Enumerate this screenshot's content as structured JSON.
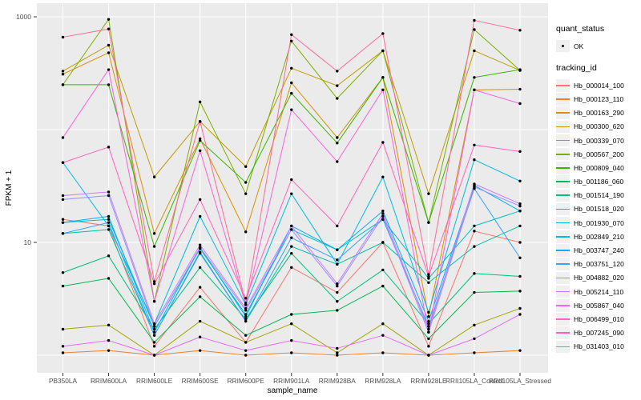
{
  "figure": {
    "y_axis": {
      "label": "FPKM + 1",
      "tick_labels": [
        "1000",
        "10"
      ],
      "tick_values": [
        1000,
        10
      ]
    },
    "x_axis": {
      "label": "sample_name"
    },
    "legend": {
      "quant_status_title": "quant_status",
      "quant_status_items": [
        {
          "label": "OK",
          "symbol": "point-icon"
        }
      ],
      "tracking_title": "tracking_id"
    },
    "colors": {
      "panel_bg": "#EBEBEB",
      "grid": "#FFFFFF",
      "tick_text": "#4D4D4D",
      "tick_mark": "#333333",
      "point": "#000000",
      "legend_key_bg": "#F0F0F0"
    }
  },
  "chart_data": {
    "type": "line",
    "title": "",
    "xlabel": "sample_name",
    "ylabel": "FPKM + 1",
    "y_scale": "log10",
    "ylim": [
      0.7,
      1400
    ],
    "y_gridlines": [
      1000,
      100,
      10,
      1
    ],
    "y_labeled_ticks": [
      1000,
      10
    ],
    "grid": true,
    "legend_position": "right",
    "point_shape": "filled-circle",
    "categories": [
      "PB350LA",
      "RRIM600LA",
      "RRIM600LE",
      "RRIM600SE",
      "RRIM600PE",
      "RRIM901LA",
      "RRIM928BA",
      "RRIM928LA",
      "RRIM928LE",
      "RRII105LA_Control",
      "RRII105LA_Stressed"
    ],
    "series": [
      {
        "name": "Hb_000014_100",
        "color": "#F8766D",
        "values": [
          16,
          14,
          1.2,
          4,
          1.3,
          6,
          3.6,
          10,
          1.2,
          12.6,
          10
        ]
      },
      {
        "name": "Hb_000123_110",
        "color": "#EA8331",
        "values": [
          1.05,
          1.1,
          1,
          1.1,
          1,
          1.05,
          1,
          1.05,
          1,
          1.05,
          1.1
        ]
      },
      {
        "name": "Hb_000163_290",
        "color": "#D89000",
        "values": [
          310,
          480,
          12,
          83,
          12.4,
          260,
          85,
          290,
          2.2,
          225,
          228
        ]
      },
      {
        "name": "Hb_000300_620",
        "color": "#C09B00",
        "values": [
          330,
          560,
          38,
          118,
          47,
          350,
          245,
          500,
          27,
          500,
          335
        ]
      },
      {
        "name": "Hb_000339_070",
        "color": "#A3A500",
        "values": [
          1.7,
          1.85,
          1,
          2,
          1.3,
          1.9,
          1.05,
          1.9,
          1,
          1.85,
          2.6
        ]
      },
      {
        "name": "Hb_000567_200",
        "color": "#7CAE00",
        "values": [
          250,
          950,
          3,
          176,
          27,
          610,
          189,
          500,
          15,
          770,
          335
        ]
      },
      {
        "name": "Hb_000809_040",
        "color": "#39B600",
        "values": [
          250,
          250,
          9.2,
          80,
          34,
          210,
          76,
          290,
          15,
          290,
          340
        ]
      },
      {
        "name": "Hb_001186_060",
        "color": "#00BB4E",
        "values": [
          4.1,
          4.8,
          1.3,
          3.3,
          1.5,
          2.3,
          2.5,
          4.1,
          1.4,
          3.6,
          3.7
        ]
      },
      {
        "name": "Hb_001514_190",
        "color": "#00BF7D",
        "values": [
          5.4,
          7.6,
          1.7,
          6,
          2.1,
          8,
          3,
          5.7,
          1.9,
          5.3,
          5
        ]
      },
      {
        "name": "Hb_001518_020",
        "color": "#00C1A3",
        "values": [
          12,
          13,
          1.5,
          8.2,
          2,
          9.2,
          6.4,
          10,
          4.4,
          9.2,
          14
        ]
      },
      {
        "name": "Hb_001930_070",
        "color": "#00BFC4",
        "values": [
          15,
          16,
          1.8,
          8.8,
          2.3,
          13,
          8.6,
          16,
          4.8,
          14,
          19
        ]
      },
      {
        "name": "Hb_002849_210",
        "color": "#00BAE0",
        "values": [
          51,
          14,
          1.9,
          17,
          2.8,
          27,
          6.4,
          38,
          2.4,
          54,
          35
        ]
      },
      {
        "name": "Hb_003747_240",
        "color": "#00B0F6",
        "values": [
          15,
          17,
          1.6,
          9,
          2.2,
          14,
          8.6,
          19,
          2,
          32,
          19
        ]
      },
      {
        "name": "Hb_003751_120",
        "color": "#35A2FF",
        "values": [
          12,
          15,
          1.5,
          8,
          2,
          11,
          7,
          16,
          1.8,
          30,
          7.3
        ]
      },
      {
        "name": "Hb_004882_020",
        "color": "#9590FF",
        "values": [
          24,
          26,
          1.8,
          9,
          2.5,
          13,
          4.1,
          17,
          1.6,
          31,
          21
        ]
      },
      {
        "name": "Hb_005214_110",
        "color": "#C77CFF",
        "values": [
          26,
          28,
          1.9,
          9.5,
          2.6,
          14,
          4.3,
          18,
          1.7,
          33,
          22
        ]
      },
      {
        "name": "Hb_005867_040",
        "color": "#E76BF3",
        "values": [
          1.2,
          1.35,
          1,
          1.45,
          1.1,
          1.35,
          1.15,
          1.5,
          1,
          1.4,
          2.3
        ]
      },
      {
        "name": "Hb_006499_010",
        "color": "#FA62DB",
        "values": [
          85,
          340,
          3,
          65,
          2.8,
          150,
          52,
          225,
          1.6,
          225,
          170
        ]
      },
      {
        "name": "Hb_007245_090",
        "color": "#FF62BC",
        "values": [
          51,
          70,
          4.3,
          24,
          3.2,
          36,
          14,
          77,
          5,
          73,
          64
        ]
      },
      {
        "name": "Hb_031403_010",
        "color": "#FF6A98",
        "values": [
          660,
          780,
          4.5,
          118,
          2.9,
          695,
          330,
          710,
          5.2,
          930,
          760
        ]
      }
    ]
  }
}
